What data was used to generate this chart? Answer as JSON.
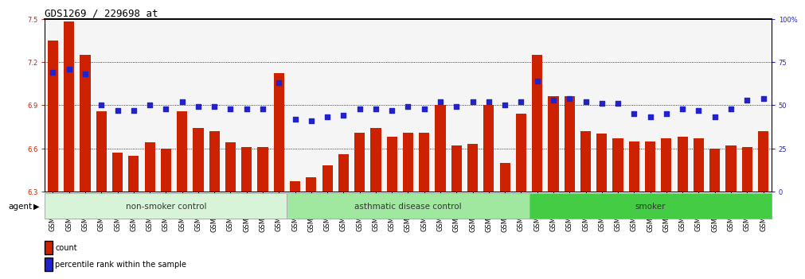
{
  "title": "GDS1269 / 229698_at",
  "samples": [
    "GSM38345",
    "GSM38346",
    "GSM38348",
    "GSM38350",
    "GSM38351",
    "GSM38353",
    "GSM38355",
    "GSM38356",
    "GSM38358",
    "GSM38362",
    "GSM38368",
    "GSM38371",
    "GSM38373",
    "GSM38377",
    "GSM38385",
    "GSM38361",
    "GSM38363",
    "GSM38364",
    "GSM38365",
    "GSM38370",
    "GSM38372",
    "GSM38375",
    "GSM38378",
    "GSM38379",
    "GSM38381",
    "GSM38383",
    "GSM38386",
    "GSM38387",
    "GSM38388",
    "GSM38389",
    "GSM38347",
    "GSM38349",
    "GSM38352",
    "GSM38354",
    "GSM38357",
    "GSM38359",
    "GSM38360",
    "GSM38366",
    "GSM38367",
    "GSM38369",
    "GSM38374",
    "GSM38376",
    "GSM38380",
    "GSM38382",
    "GSM38384"
  ],
  "bar_values": [
    7.35,
    7.48,
    7.25,
    6.86,
    6.57,
    6.55,
    6.64,
    6.6,
    6.86,
    6.74,
    6.72,
    6.64,
    6.61,
    6.61,
    7.12,
    6.37,
    6.4,
    6.48,
    6.56,
    6.71,
    6.74,
    6.68,
    6.71,
    6.71,
    6.9,
    6.62,
    6.63,
    6.9,
    6.5,
    6.84,
    7.25,
    6.96,
    6.96,
    6.72,
    6.7,
    6.67,
    6.65,
    6.65,
    6.67,
    6.68,
    6.67,
    6.6,
    6.62,
    6.61,
    6.72
  ],
  "pct_values": [
    69,
    71,
    68,
    50,
    47,
    47,
    50,
    48,
    52,
    49,
    49,
    48,
    48,
    48,
    63,
    42,
    41,
    43,
    44,
    48,
    48,
    47,
    49,
    48,
    52,
    49,
    52,
    52,
    50,
    52,
    64,
    53,
    54,
    52,
    51,
    51,
    45,
    43,
    45,
    48,
    47,
    43,
    48,
    53,
    54
  ],
  "groups": [
    {
      "label": "non-smoker control",
      "start": 0,
      "end": 15,
      "color": "#d8f4d8"
    },
    {
      "label": "asthmatic disease control",
      "start": 15,
      "end": 30,
      "color": "#a0e8a0"
    },
    {
      "label": "smoker",
      "start": 30,
      "end": 45,
      "color": "#44cc44"
    }
  ],
  "ylim": [
    6.3,
    7.5
  ],
  "y_ticks": [
    6.3,
    6.6,
    6.9,
    7.2,
    7.5
  ],
  "right_ylim": [
    0,
    100
  ],
  "right_yticks": [
    0,
    25,
    50,
    75,
    100
  ],
  "right_yticklabels": [
    "0",
    "25",
    "50",
    "75",
    "100%"
  ],
  "bar_color": "#cc2200",
  "dot_color": "#2222cc",
  "bg_color": "#f5f5f5",
  "title_fontsize": 9,
  "tick_fontsize": 6,
  "xlabel_fontsize": 6
}
